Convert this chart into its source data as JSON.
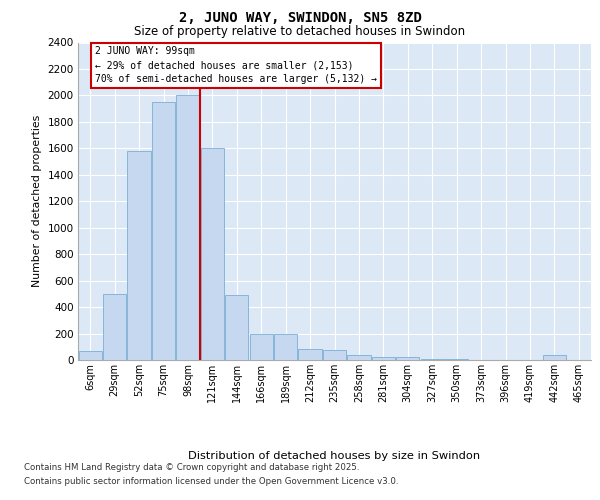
{
  "title": "2, JUNO WAY, SWINDON, SN5 8ZD",
  "subtitle": "Size of property relative to detached houses in Swindon",
  "xlabel": "Distribution of detached houses by size in Swindon",
  "ylabel": "Number of detached properties",
  "footnote1": "Contains HM Land Registry data © Crown copyright and database right 2025.",
  "footnote2": "Contains public sector information licensed under the Open Government Licence v3.0.",
  "annotation_line1": "2 JUNO WAY: 99sqm",
  "annotation_line2": "← 29% of detached houses are smaller (2,153)",
  "annotation_line3": "70% of semi-detached houses are larger (5,132) →",
  "bar_color": "#c5d8ef",
  "bar_edge_color": "#7aafd4",
  "vline_color": "#cc0000",
  "bg_color": "#dce8f5",
  "categories": [
    "6sqm",
    "29sqm",
    "52sqm",
    "75sqm",
    "98sqm",
    "121sqm",
    "144sqm",
    "166sqm",
    "189sqm",
    "212sqm",
    "235sqm",
    "258sqm",
    "281sqm",
    "304sqm",
    "327sqm",
    "350sqm",
    "373sqm",
    "396sqm",
    "419sqm",
    "442sqm",
    "465sqm"
  ],
  "values": [
    70,
    500,
    1580,
    1950,
    2000,
    1600,
    490,
    200,
    195,
    80,
    75,
    35,
    20,
    20,
    5,
    8,
    3,
    2,
    2,
    35,
    2
  ],
  "ylim": [
    0,
    2400
  ],
  "yticks": [
    0,
    200,
    400,
    600,
    800,
    1000,
    1200,
    1400,
    1600,
    1800,
    2000,
    2200,
    2400
  ],
  "vline_index": 4.5,
  "figsize": [
    6.0,
    5.0
  ],
  "dpi": 100
}
